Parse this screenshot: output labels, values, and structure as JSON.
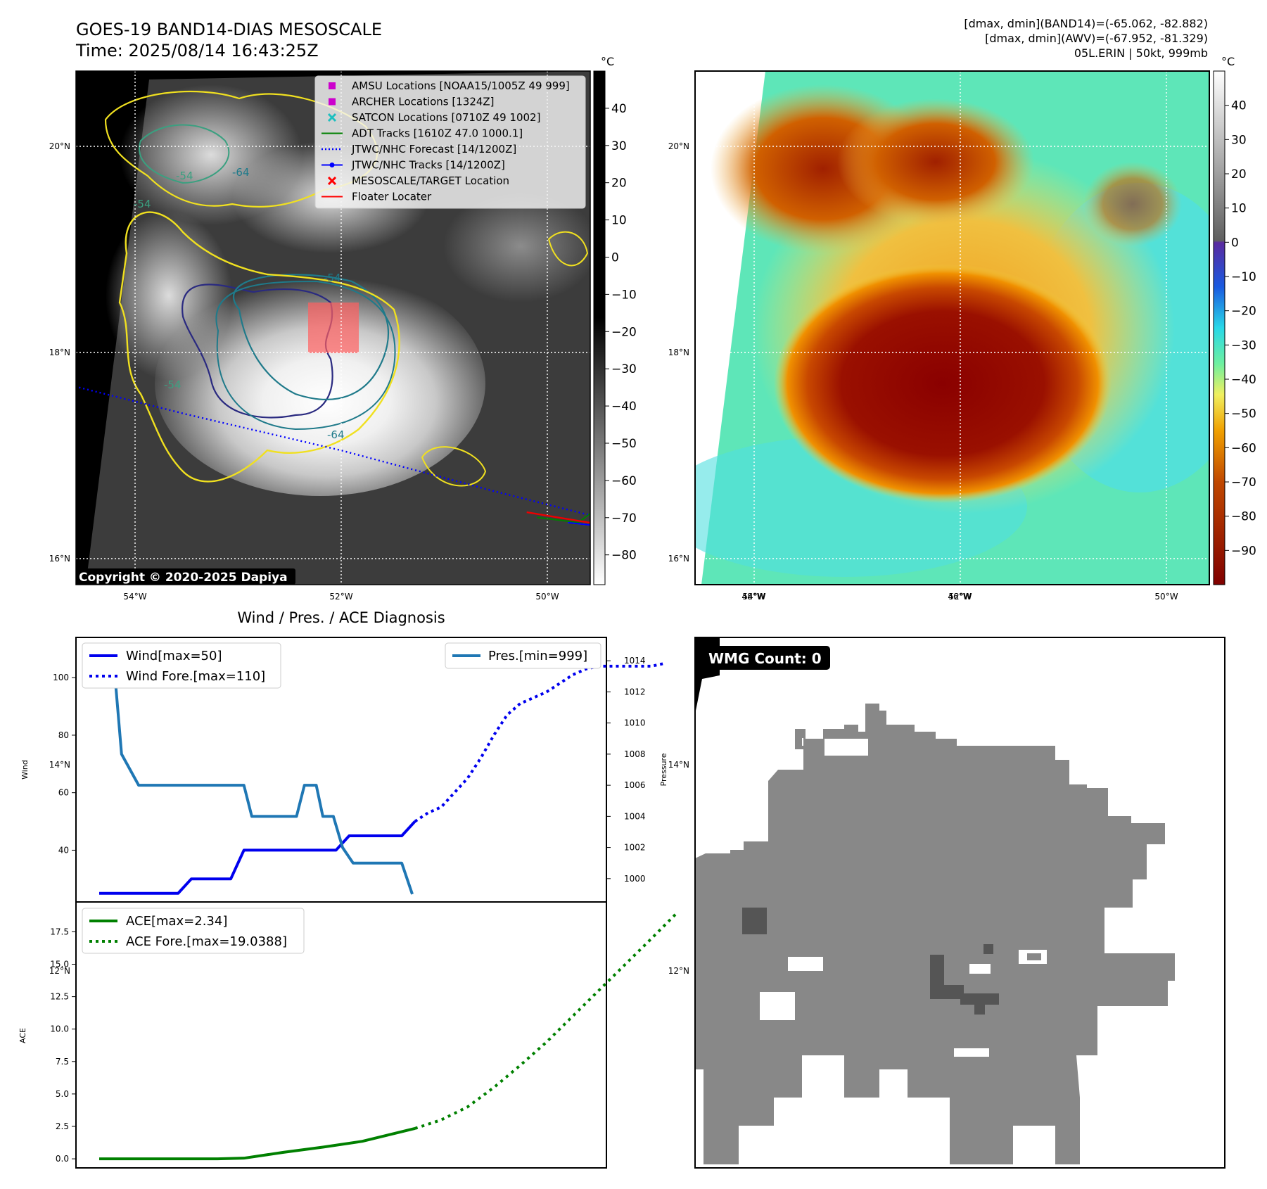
{
  "header": {
    "title_line1": "GOES-19 BAND14-DIAS MESOSCALE",
    "title_line2": "Time: 2025/08/14 16:43:25Z",
    "info_line1": "[dmax, dmin](BAND14)=(-65.062, -82.882)",
    "info_line2": "[dmax, dmin](AWV)=(-67.952, -81.329)",
    "info_line3": "05L.ERIN | 50kt, 999mb"
  },
  "map": {
    "lat_labels": [
      "20°N",
      "18°N",
      "16°N",
      "14°N",
      "12°N"
    ],
    "lat_values": [
      20,
      18,
      16,
      14,
      12
    ],
    "lon_labels": [
      "54°W",
      "52°W",
      "50°W",
      "48°W",
      "46°W"
    ],
    "lon_values": [
      -54,
      -52,
      -50,
      -48,
      -46
    ],
    "copyright": "Copyright © 2020-2025 Dapiya",
    "contour_labels": [
      "-54",
      "-64",
      "-54",
      "-54",
      "-64",
      "-54"
    ],
    "legend": [
      {
        "label": "AMSU Locations [NOAA15/1005Z 49 999]",
        "color": "#cc00cc",
        "symbol": "square"
      },
      {
        "label": "ARCHER Locations [1324Z]",
        "color": "#cc00cc",
        "symbol": "square"
      },
      {
        "label": "SATCON Locations [0710Z 49 1002]",
        "color": "#1fbfbf",
        "symbol": "x"
      },
      {
        "label": "ADT Tracks [1610Z 47.0 1000.1]",
        "color": "#008000",
        "symbol": "line"
      },
      {
        "label": "JTWC/NHC Forecast [14/1200Z]",
        "color": "#0000ff",
        "symbol": "dotted"
      },
      {
        "label": "JTWC/NHC Tracks [14/1200Z]",
        "color": "#0000ff",
        "symbol": "line-dot"
      },
      {
        "label": "MESOSCALE/TARGET Location",
        "color": "#ff0000",
        "symbol": "x"
      },
      {
        "label": "Floater Locater",
        "color": "#ff0000",
        "symbol": "line"
      }
    ]
  },
  "colorbar_gray": {
    "unit": "°C",
    "ticks": [
      "40",
      "30",
      "20",
      "10",
      "0",
      "−10",
      "−20",
      "−30",
      "−40",
      "−50",
      "−60",
      "−70",
      "−80"
    ],
    "tick_values": [
      40,
      30,
      20,
      10,
      0,
      -10,
      -20,
      -30,
      -40,
      -50,
      -60,
      -70,
      -80
    ]
  },
  "colorbar_color": {
    "unit": "°C",
    "ticks": [
      "40",
      "30",
      "20",
      "10",
      "0",
      "−10",
      "−20",
      "−30",
      "−40",
      "−50",
      "−60",
      "−70",
      "−80",
      "−90"
    ],
    "tick_values": [
      40,
      30,
      20,
      10,
      0,
      -10,
      -20,
      -30,
      -40,
      -50,
      -60,
      -70,
      -80,
      -90
    ]
  },
  "wmg": {
    "label": "WMG Count: 0"
  },
  "chart_data": [
    {
      "type": "line",
      "title": "Wind / Pres. / ACE Diagnosis",
      "ylabel": "Wind",
      "y2label": "Pressure",
      "ylim": [
        22,
        114
      ],
      "y2lim": [
        998.5,
        1015.5
      ],
      "yticks": [
        40,
        60,
        80,
        100
      ],
      "y2ticks": [
        1000,
        1002,
        1004,
        1006,
        1008,
        1010,
        1012,
        1014
      ],
      "series": [
        {
          "name": "Wind[max=50]",
          "axis": "left",
          "style": "solid",
          "color": "#0000ee",
          "x": [
            0,
            1,
            2,
            3,
            4,
            5,
            6,
            7,
            8,
            9,
            10,
            11,
            12,
            13,
            14,
            15,
            16,
            17,
            18,
            19,
            20,
            21,
            22,
            23,
            24
          ],
          "values": [
            25,
            25,
            25,
            25,
            25,
            25,
            25,
            30,
            30,
            30,
            30,
            40,
            40,
            40,
            40,
            40,
            40,
            40,
            40,
            45,
            45,
            45,
            45,
            45,
            50
          ]
        },
        {
          "name": "Wind Fore.[max=110]",
          "axis": "left",
          "style": "dotted",
          "color": "#0000ee",
          "x": [
            24,
            25,
            26,
            27,
            28,
            29,
            30,
            31,
            32,
            33,
            34,
            35,
            36,
            37,
            38,
            39,
            40,
            41,
            42,
            43
          ],
          "values": [
            50,
            53,
            55,
            60,
            65,
            72,
            80,
            87,
            91,
            93,
            95,
            98,
            101,
            103,
            104,
            104,
            104,
            104,
            104,
            105
          ]
        },
        {
          "name": "Pres.[min=999]",
          "axis": "right",
          "style": "solid",
          "color": "#1f77b4",
          "x": [
            0.2,
            1,
            1.7,
            3,
            4.2,
            5,
            6,
            7,
            8,
            9,
            10,
            11,
            11.6,
            12.6,
            13,
            14,
            15,
            15.6,
            16.5,
            17,
            17.8,
            18.5,
            19.3,
            20,
            21,
            22,
            23,
            23.8
          ],
          "values": [
            1015,
            1015,
            1008,
            1006,
            1006,
            1006,
            1006,
            1006,
            1006,
            1006,
            1006,
            1006,
            1004,
            1004,
            1004,
            1004,
            1004,
            1006,
            1006,
            1004,
            1004,
            1002,
            1001,
            1001,
            1001,
            1001,
            1001,
            999
          ]
        }
      ]
    },
    {
      "type": "line",
      "title": "",
      "ylabel": "ACE",
      "ylim": [
        -0.7,
        19.8
      ],
      "yticks": [
        0.0,
        2.5,
        5.0,
        7.5,
        10.0,
        12.5,
        15.0,
        17.5
      ],
      "ytick_labels": [
        "0.0",
        "2.5",
        "5.0",
        "7.5",
        "10.0",
        "12.5",
        "15.0",
        "17.5"
      ],
      "series": [
        {
          "name": "ACE[max=2.34]",
          "style": "solid",
          "color": "#008000",
          "x": [
            0,
            3,
            6,
            9,
            11,
            14,
            17,
            20,
            24
          ],
          "values": [
            0,
            0,
            0,
            0,
            0.05,
            0.5,
            0.9,
            1.35,
            2.34
          ]
        },
        {
          "name": "ACE Fore.[max=19.0388]",
          "style": "dotted",
          "color": "#008000",
          "x": [
            24,
            26,
            28,
            30,
            32,
            34,
            36,
            38,
            40,
            42,
            44
          ],
          "values": [
            2.34,
            3.0,
            4.0,
            5.5,
            7.2,
            9.0,
            11.0,
            13.0,
            15.0,
            17.0,
            19.0388
          ]
        }
      ]
    }
  ]
}
